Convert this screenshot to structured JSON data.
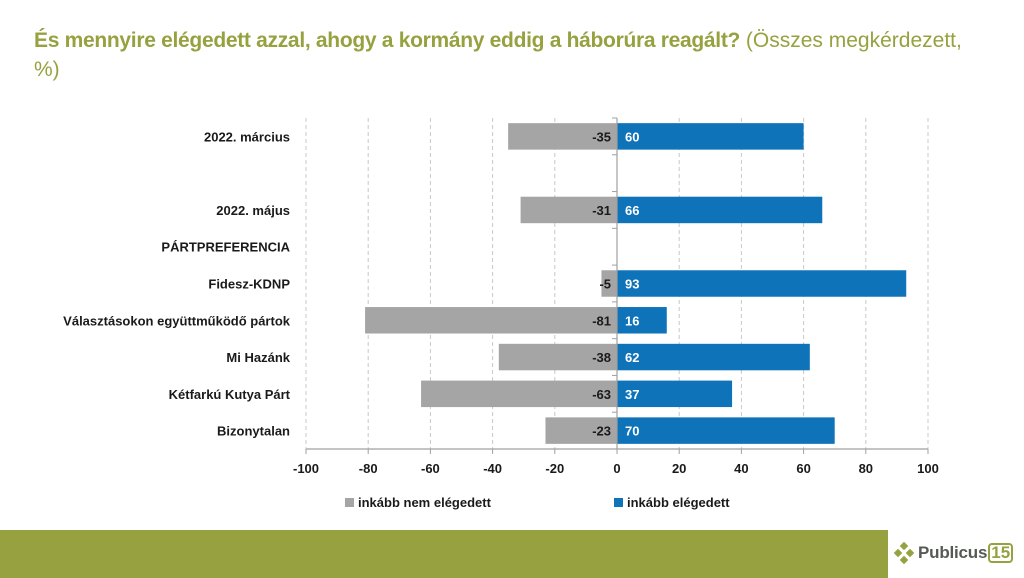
{
  "header": {
    "title_bold": "És mennyire elégedett azzal, ahogy a kormány eddig a háborúra reagált?",
    "title_normal": " (Összes megkérdezett, %)"
  },
  "colors": {
    "title": "#97A13F",
    "negative": "#A5A5A5",
    "positive": "#0F73BA",
    "footer": "#98A140"
  },
  "chart_data": {
    "type": "bar",
    "orientation": "horizontal-diverging",
    "title": "És mennyire elégedett azzal, ahogy a kormány eddig a háborúra reagált? (Összes megkérdezett, %)",
    "xlabel": "",
    "ylabel": "",
    "xlim": [
      -100,
      100
    ],
    "xticks": [
      -100,
      -80,
      -60,
      -40,
      -20,
      0,
      20,
      40,
      60,
      80,
      100
    ],
    "grid": "vertical-dashed",
    "legend_position": "bottom",
    "categories": [
      "2022. március",
      "",
      "2022. május",
      "PÁRTPREFERENCIA",
      "Fidesz-KDNP",
      "Választásokon együttműködő pártok",
      "Mi Hazánk",
      "Kétfarkú Kutya Párt",
      "Bizonytalan"
    ],
    "series": [
      {
        "name": "inkább nem elégedett",
        "color": "#A5A5A5",
        "values": [
          -35,
          null,
          -31,
          null,
          -5,
          -81,
          -38,
          -63,
          -23
        ]
      },
      {
        "name": "inkább elégedett",
        "color": "#0F73BA",
        "values": [
          60,
          null,
          66,
          null,
          93,
          16,
          62,
          37,
          70
        ]
      }
    ]
  },
  "legend": {
    "items": [
      {
        "label": "inkább nem elégedett",
        "color": "#A5A5A5"
      },
      {
        "label": "inkább elégedett",
        "color": "#0F73BA"
      }
    ]
  },
  "footer": {
    "logo_text": "Publicus",
    "logo_number": "15"
  }
}
